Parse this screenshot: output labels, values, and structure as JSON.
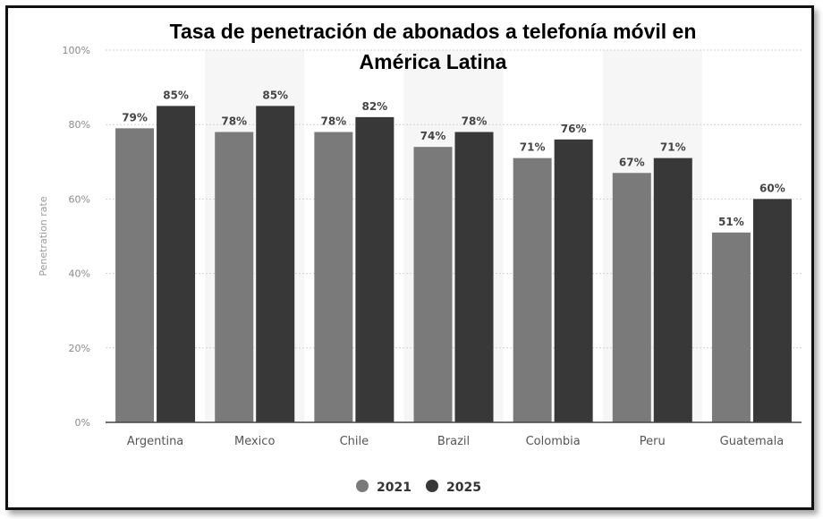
{
  "chart_data": {
    "type": "bar",
    "title_lines": [
      "Tasa de penetración de abonados a telefonía móvil en",
      "América Latina"
    ],
    "ylabel": "Penetration rate",
    "xlabel": "",
    "ylim": [
      0,
      100
    ],
    "y_ticks": [
      "0%",
      "20%",
      "40%",
      "60%",
      "80%",
      "100%"
    ],
    "y_tick_values": [
      0,
      20,
      40,
      60,
      80,
      100
    ],
    "categories": [
      "Argentina",
      "Mexico",
      "Chile",
      "Brazil",
      "Colombia",
      "Peru",
      "Guatemala"
    ],
    "series": [
      {
        "name": "2021",
        "color": "#7a7a7a",
        "values": [
          79,
          78,
          78,
          74,
          71,
          67,
          51
        ],
        "labels": [
          "79%",
          "78%",
          "78%",
          "74%",
          "71%",
          "67%",
          "51%"
        ]
      },
      {
        "name": "2025",
        "color": "#383838",
        "values": [
          85,
          85,
          82,
          78,
          76,
          71,
          60
        ],
        "labels": [
          "85%",
          "85%",
          "82%",
          "78%",
          "76%",
          "71%",
          "60%"
        ]
      }
    ],
    "grid": true,
    "legend_position": "bottom-center"
  }
}
